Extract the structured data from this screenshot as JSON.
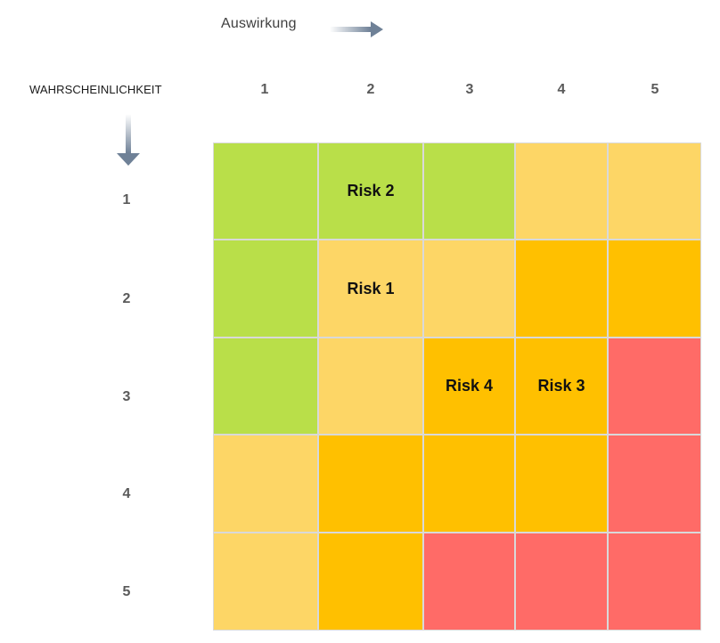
{
  "x_axis": {
    "title": "Auswirkung",
    "levels": [
      "1",
      "2",
      "3",
      "4",
      "5"
    ]
  },
  "y_axis": {
    "title": "WAHRSCHEINLICHKEIT",
    "levels": [
      "1",
      "2",
      "3",
      "4",
      "5"
    ]
  },
  "colors": {
    "green": "#b9df49",
    "light-orange": "#fdd666",
    "orange": "#ffc000",
    "red": "#ff6b67",
    "arrow": "#7e8ea3"
  },
  "matrix": [
    [
      "green",
      "green",
      "green",
      "light-orange",
      "light-orange"
    ],
    [
      "green",
      "light-orange",
      "light-orange",
      "orange",
      "orange"
    ],
    [
      "green",
      "light-orange",
      "orange",
      "orange",
      "red"
    ],
    [
      "light-orange",
      "orange",
      "orange",
      "orange",
      "red"
    ],
    [
      "light-orange",
      "orange",
      "red",
      "red",
      "red"
    ]
  ],
  "risks": [
    {
      "label": "Risk 2",
      "row": 1,
      "col": 2
    },
    {
      "label": "Risk 1",
      "row": 2,
      "col": 2
    },
    {
      "label": "Risk 4",
      "row": 3,
      "col": 3
    },
    {
      "label": "Risk 3",
      "row": 3,
      "col": 4
    }
  ]
}
